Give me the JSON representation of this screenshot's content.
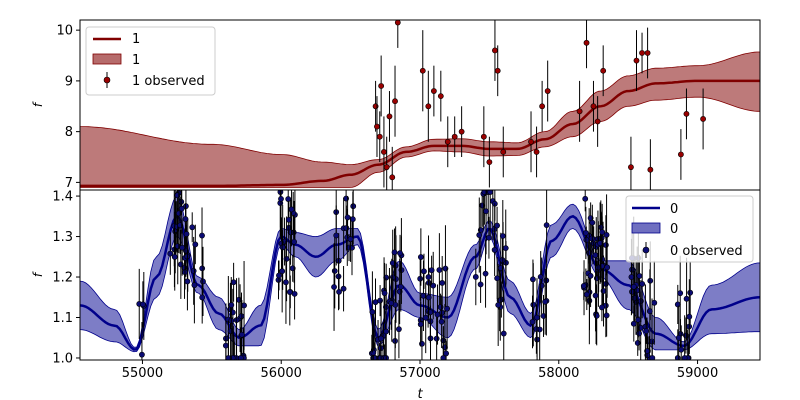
{
  "chart_data": [
    {
      "type": "line",
      "panel": "top",
      "xlabel": "",
      "ylabel": "f",
      "xlim": [
        54550,
        59450
      ],
      "ylim": [
        6.85,
        10.2
      ],
      "yticks": [
        7,
        8,
        9,
        10
      ],
      "ytick_labels": [
        "7",
        "8",
        "9",
        "10"
      ],
      "legend_position": "upper left",
      "colors": {
        "line": "#800000",
        "band": "#b66b6b",
        "points": "#990000"
      },
      "legend": {
        "line_label": "1",
        "band_label": "1",
        "points_label": "1 observed"
      },
      "mean": {
        "x": [
          54550,
          55500,
          56000,
          56300,
          56500,
          56700,
          56900,
          57100,
          57300,
          57500,
          57700,
          57900,
          58100,
          58300,
          58500,
          58700,
          59000,
          59450
        ],
        "y": [
          6.93,
          6.93,
          6.95,
          7.03,
          7.15,
          7.35,
          7.6,
          7.72,
          7.72,
          7.66,
          7.66,
          7.85,
          8.15,
          8.5,
          8.8,
          8.95,
          9.0,
          9.0
        ]
      },
      "band_upper": [
        8.1,
        7.75,
        7.55,
        7.4,
        7.35,
        7.45,
        7.7,
        7.85,
        7.86,
        7.8,
        7.78,
        8.0,
        8.4,
        8.8,
        9.1,
        9.25,
        9.3,
        9.57
      ],
      "band_lower": [
        6.9,
        6.9,
        6.9,
        6.9,
        6.9,
        7.2,
        7.5,
        7.62,
        7.6,
        7.52,
        7.53,
        7.7,
        7.9,
        8.2,
        8.5,
        8.62,
        8.68,
        8.4
      ],
      "observed": [
        {
          "x": 56680,
          "y": 8.5,
          "err": 0.5
        },
        {
          "x": 56690,
          "y": 8.1,
          "err": 0.6
        },
        {
          "x": 56710,
          "y": 7.9,
          "err": 0.5
        },
        {
          "x": 56720,
          "y": 8.9,
          "err": 0.6
        },
        {
          "x": 56740,
          "y": 7.6,
          "err": 0.7
        },
        {
          "x": 56760,
          "y": 7.3,
          "err": 0.6
        },
        {
          "x": 56780,
          "y": 8.3,
          "err": 0.5
        },
        {
          "x": 56800,
          "y": 7.1,
          "err": 0.6
        },
        {
          "x": 56820,
          "y": 8.6,
          "err": 0.7
        },
        {
          "x": 56840,
          "y": 10.15,
          "err": 0.5
        },
        {
          "x": 57020,
          "y": 9.2,
          "err": 0.8
        },
        {
          "x": 57060,
          "y": 8.5,
          "err": 0.7
        },
        {
          "x": 57100,
          "y": 8.8,
          "err": 0.5
        },
        {
          "x": 57150,
          "y": 8.7,
          "err": 0.5
        },
        {
          "x": 57200,
          "y": 7.8,
          "err": 0.5
        },
        {
          "x": 57250,
          "y": 7.9,
          "err": 0.4
        },
        {
          "x": 57300,
          "y": 8.0,
          "err": 0.5
        },
        {
          "x": 57460,
          "y": 7.9,
          "err": 0.6
        },
        {
          "x": 57500,
          "y": 7.4,
          "err": 0.5
        },
        {
          "x": 57540,
          "y": 9.6,
          "err": 0.6
        },
        {
          "x": 57560,
          "y": 9.2,
          "err": 0.5
        },
        {
          "x": 57600,
          "y": 7.6,
          "err": 0.5
        },
        {
          "x": 57800,
          "y": 7.8,
          "err": 0.6
        },
        {
          "x": 57840,
          "y": 7.6,
          "err": 0.5
        },
        {
          "x": 57880,
          "y": 8.5,
          "err": 0.5
        },
        {
          "x": 57920,
          "y": 8.8,
          "err": 0.6
        },
        {
          "x": 58150,
          "y": 8.4,
          "err": 0.6
        },
        {
          "x": 58200,
          "y": 9.75,
          "err": 0.5
        },
        {
          "x": 58250,
          "y": 8.5,
          "err": 0.5
        },
        {
          "x": 58280,
          "y": 8.2,
          "err": 0.5
        },
        {
          "x": 58320,
          "y": 9.2,
          "err": 0.5
        },
        {
          "x": 58520,
          "y": 7.3,
          "err": 0.6
        },
        {
          "x": 58560,
          "y": 9.4,
          "err": 0.6
        },
        {
          "x": 58600,
          "y": 9.55,
          "err": 0.4
        },
        {
          "x": 58640,
          "y": 9.55,
          "err": 0.5
        },
        {
          "x": 58660,
          "y": 7.25,
          "err": 0.6
        },
        {
          "x": 58880,
          "y": 7.55,
          "err": 0.5
        },
        {
          "x": 58920,
          "y": 8.35,
          "err": 0.5
        },
        {
          "x": 59040,
          "y": 8.25,
          "err": 0.6
        }
      ]
    },
    {
      "type": "line",
      "panel": "bottom",
      "xlabel": "t",
      "ylabel": "f",
      "xlim": [
        54550,
        59450
      ],
      "ylim": [
        0.995,
        1.415
      ],
      "xticks": [
        55000,
        56000,
        57000,
        58000,
        59000
      ],
      "xtick_labels": [
        "55000",
        "56000",
        "57000",
        "58000",
        "59000"
      ],
      "yticks": [
        1.0,
        1.1,
        1.2,
        1.3,
        1.4
      ],
      "ytick_labels": [
        "1.0",
        "1.1",
        "1.2",
        "1.3",
        "1.4"
      ],
      "legend_position": "upper right",
      "colors": {
        "line": "#00008b",
        "band": "#6f6fc0",
        "points": "#0b0b73"
      },
      "legend": {
        "line_label": "0",
        "band_label": "0",
        "points_label": "0 observed"
      },
      "mean": {
        "x": [
          54550,
          54800,
          54950,
          55100,
          55250,
          55400,
          55550,
          55700,
          55850,
          56000,
          56100,
          56250,
          56400,
          56550,
          56700,
          56850,
          57000,
          57200,
          57400,
          57500,
          57650,
          57800,
          57950,
          58100,
          58300,
          58500,
          58700,
          58900,
          59100,
          59450
        ],
        "y": [
          1.13,
          1.08,
          1.02,
          1.2,
          1.35,
          1.18,
          1.11,
          1.05,
          1.08,
          1.3,
          1.28,
          1.25,
          1.28,
          1.3,
          1.05,
          1.18,
          1.13,
          1.1,
          1.25,
          1.32,
          1.15,
          1.08,
          1.29,
          1.35,
          1.22,
          1.18,
          1.06,
          1.03,
          1.12,
          1.15
        ]
      },
      "band_width": [
        0.06,
        0.04,
        0.005,
        0.05,
        0.05,
        0.02,
        0.04,
        0.02,
        0.05,
        0.02,
        0.03,
        0.05,
        0.04,
        0.02,
        0.02,
        0.06,
        0.03,
        0.05,
        0.03,
        0.02,
        0.04,
        0.03,
        0.04,
        0.03,
        0.02,
        0.06,
        0.04,
        0.01,
        0.06,
        0.085
      ],
      "observed_clusters": [
        {
          "x0": 54970,
          "x1": 55010,
          "n": 4
        },
        {
          "x0": 55200,
          "x1": 55330,
          "n": 26
        },
        {
          "x0": 55350,
          "x1": 55450,
          "n": 8
        },
        {
          "x0": 55600,
          "x1": 55760,
          "n": 26
        },
        {
          "x0": 55950,
          "x1": 56100,
          "n": 24
        },
        {
          "x0": 56380,
          "x1": 56520,
          "n": 18
        },
        {
          "x0": 56650,
          "x1": 56870,
          "n": 40
        },
        {
          "x0": 57000,
          "x1": 57200,
          "n": 30
        },
        {
          "x0": 57400,
          "x1": 57620,
          "n": 30
        },
        {
          "x0": 57800,
          "x1": 57920,
          "n": 14
        },
        {
          "x0": 58180,
          "x1": 58360,
          "n": 44
        },
        {
          "x0": 58520,
          "x1": 58700,
          "n": 30
        },
        {
          "x0": 58850,
          "x1": 58950,
          "n": 14
        }
      ]
    }
  ]
}
